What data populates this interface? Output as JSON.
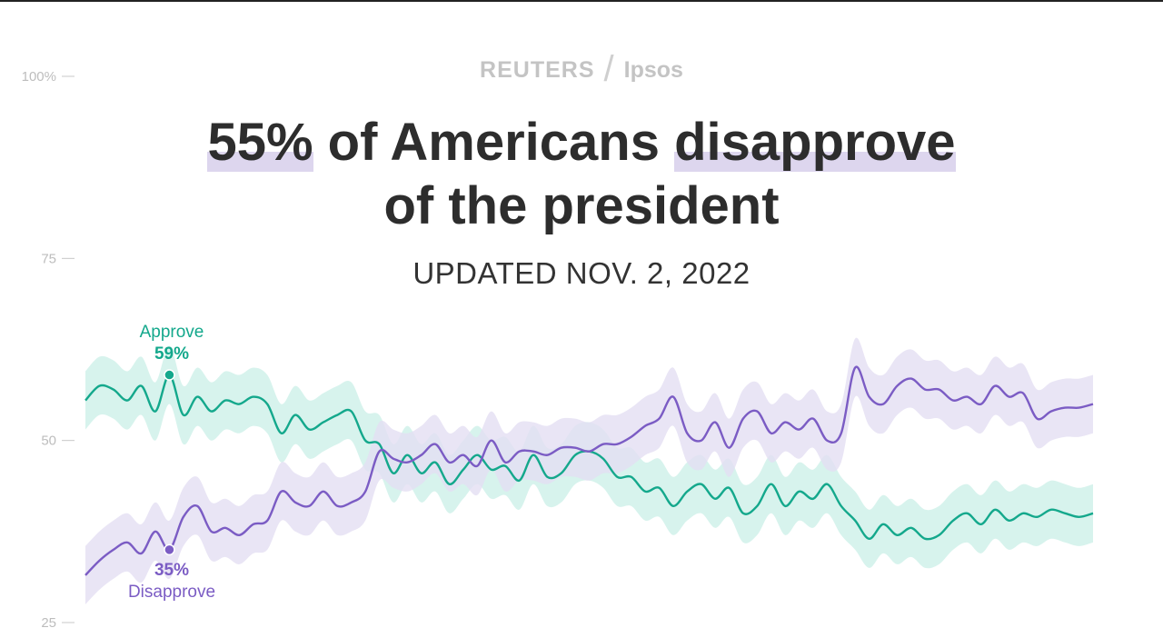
{
  "brand": {
    "left": "REUTERS",
    "separator": "/",
    "right": "Ipsos"
  },
  "headline": {
    "highlight1": "55%",
    "text1": " of Americans ",
    "highlight2": "disapprove",
    "line2": "of the president"
  },
  "subtitle": "UPDATED NOV. 2, 2022",
  "colors": {
    "approve": "#14a88c",
    "approve_band": "#cdf0e8",
    "disapprove": "#7b5cc4",
    "disapprove_band": "#e4def3",
    "axis": "#c8c8c8"
  },
  "chart_data": {
    "type": "line",
    "ylim": [
      25,
      100
    ],
    "yticks": [
      {
        "value": 100,
        "label": "100%"
      },
      {
        "value": 75,
        "label": "75"
      },
      {
        "value": 50,
        "label": "50"
      },
      {
        "value": 25,
        "label": "25"
      }
    ],
    "grid": false,
    "band_halfwidth": 4,
    "series": [
      {
        "name": "Approve",
        "end_label_value": "59%",
        "highlight_index": 6,
        "values": [
          55.5,
          57.5,
          57,
          55.5,
          57.5,
          54,
          59,
          53.5,
          56,
          54,
          55.5,
          55,
          56,
          55,
          51,
          53.5,
          51.5,
          52.5,
          53.5,
          54,
          50,
          49.5,
          45.5,
          48,
          45.5,
          47,
          44,
          46,
          48,
          46,
          46.5,
          44.5,
          48,
          45,
          45.5,
          48,
          48.5,
          47.5,
          45,
          45,
          43,
          43.5,
          41,
          43,
          44,
          42,
          43.5,
          40,
          41,
          44,
          41,
          43,
          42,
          44,
          41,
          39,
          36.5,
          38.5,
          37,
          38,
          36.5,
          37,
          39,
          40,
          38.5,
          40.5,
          39,
          40,
          39.5,
          40.5,
          40,
          39.5,
          40
        ]
      },
      {
        "name": "Disapprove",
        "end_label_value": "35%",
        "highlight_index": 6,
        "values": [
          31.5,
          33.5,
          35,
          36,
          34.5,
          37.5,
          35,
          39.5,
          41,
          37.5,
          38,
          37,
          38.5,
          39,
          43,
          41.5,
          41,
          43,
          41,
          41.5,
          43,
          48.5,
          47.5,
          47,
          48,
          49.5,
          47,
          48,
          46.5,
          50,
          47,
          48.5,
          48.5,
          48,
          49,
          49,
          48.5,
          49.5,
          49.5,
          50.5,
          52,
          53,
          56,
          51,
          50,
          52.5,
          49,
          53,
          54,
          51,
          52.5,
          51.5,
          53,
          50,
          51,
          60,
          56,
          55,
          57.5,
          58.5,
          57,
          57,
          55.5,
          56,
          55,
          57.5,
          56,
          56.5,
          53,
          54,
          54.5,
          54.5,
          55
        ]
      }
    ]
  }
}
